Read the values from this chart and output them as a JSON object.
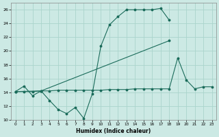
{
  "xlabel": "Humidex (Indice chaleur)",
  "background_color": "#cce9e4",
  "grid_color": "#aad4cc",
  "line_color": "#1a6b5a",
  "xlim": [
    -0.5,
    23.5
  ],
  "ylim": [
    10,
    27
  ],
  "xticks": [
    0,
    1,
    2,
    3,
    4,
    5,
    6,
    7,
    8,
    9,
    10,
    11,
    12,
    13,
    14,
    15,
    16,
    17,
    18,
    19,
    20,
    21,
    22,
    23
  ],
  "yticks": [
    10,
    12,
    14,
    16,
    18,
    20,
    22,
    24,
    26
  ],
  "series": [
    {
      "x": [
        0,
        1,
        2,
        3,
        4,
        5,
        6,
        7,
        8,
        9,
        10,
        11,
        12,
        13,
        14,
        15,
        16,
        17,
        18
      ],
      "y": [
        14.1,
        14.9,
        13.5,
        14.2,
        12.8,
        11.5,
        10.9,
        11.8,
        10.2,
        13.8,
        20.7,
        23.8,
        25.0,
        26.0,
        26.0,
        26.0,
        26.0,
        26.2,
        24.5
      ]
    },
    {
      "x": [
        0,
        3,
        18
      ],
      "y": [
        14.1,
        14.2,
        21.5
      ]
    },
    {
      "x": [
        0,
        1,
        2,
        3,
        4,
        5,
        6,
        7,
        8,
        9,
        10,
        11,
        12,
        13,
        14,
        15,
        16,
        17,
        18,
        19,
        20,
        21,
        22,
        23
      ],
      "y": [
        14.1,
        14.1,
        14.1,
        14.2,
        14.2,
        14.3,
        14.3,
        14.3,
        14.3,
        14.3,
        14.3,
        14.4,
        14.4,
        14.4,
        14.5,
        14.5,
        14.5,
        14.5,
        14.5,
        19.0,
        15.8,
        14.5,
        14.8,
        14.8
      ]
    }
  ]
}
